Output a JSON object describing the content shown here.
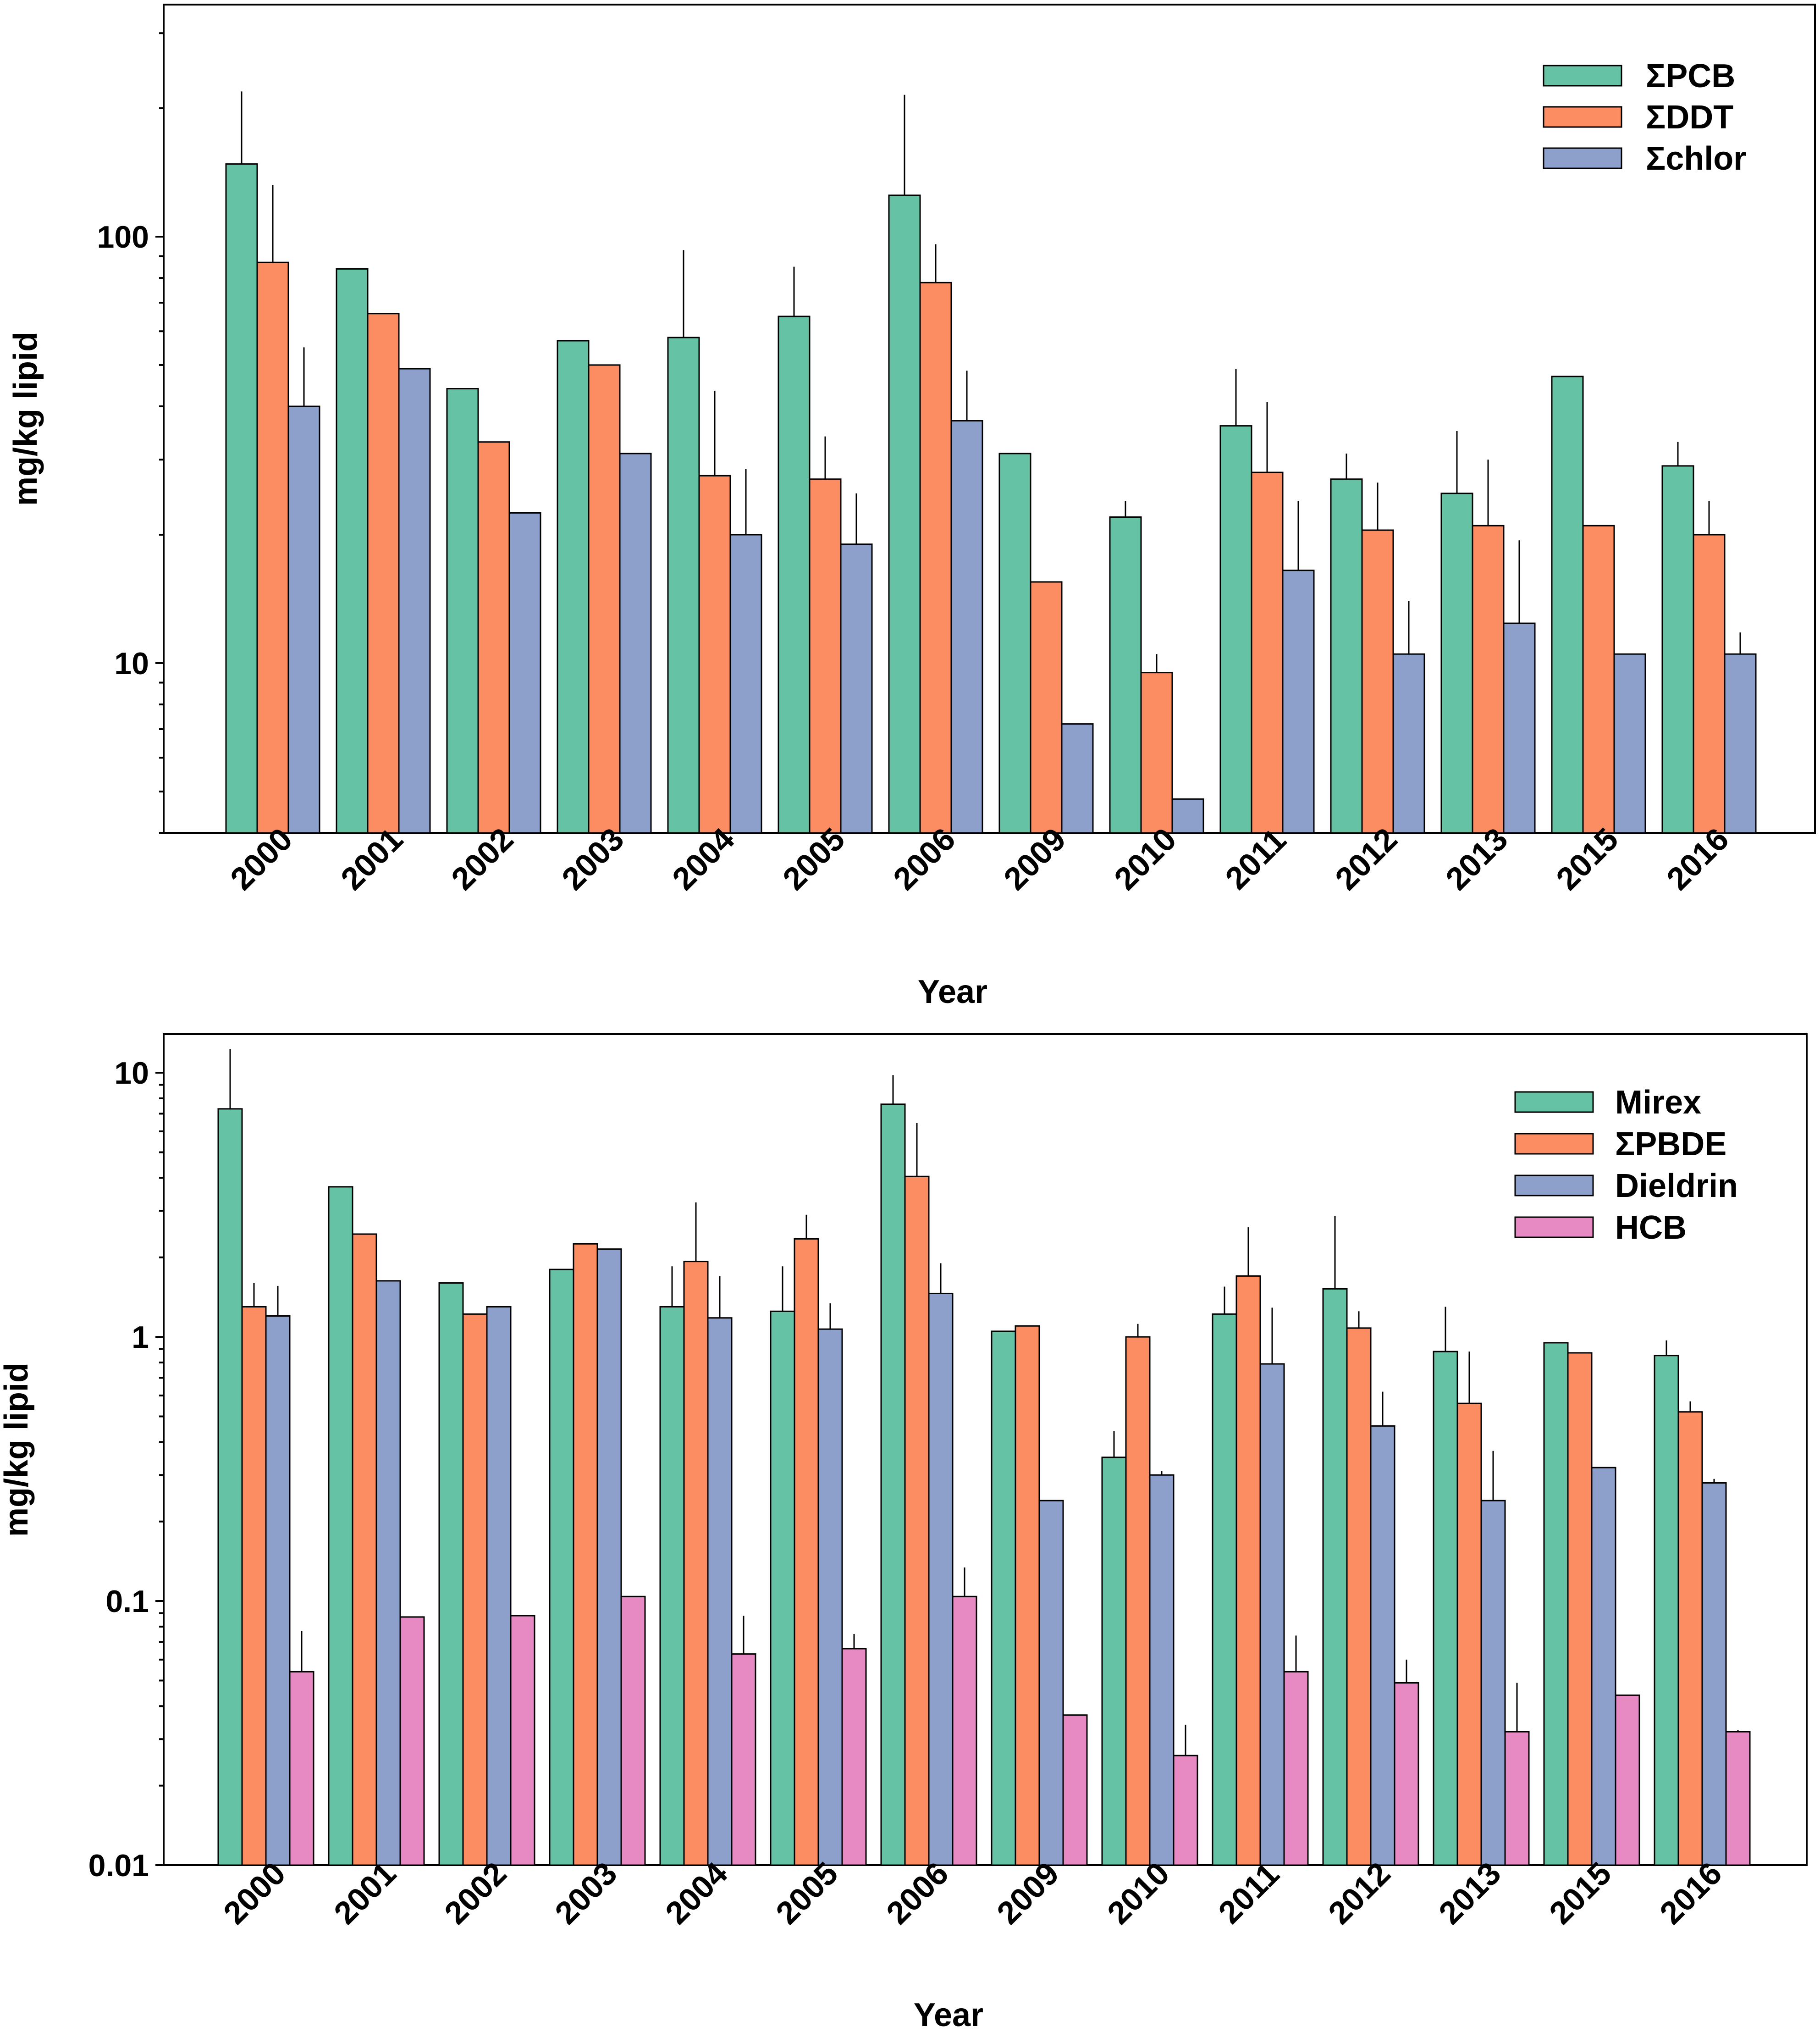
{
  "colors": {
    "series1": "#66c2a5",
    "series2": "#fc8d62",
    "series3": "#8da0cb",
    "series4": "#e78ac3",
    "axis": "#000000"
  },
  "chart_data": [
    {
      "type": "bar",
      "scale": "log",
      "title": "",
      "xlabel": "Year",
      "ylabel": "mg/kg lipid",
      "ylim": [
        4,
        350
      ],
      "yticks": [
        {
          "value": 10,
          "label": "10"
        },
        {
          "value": 100,
          "label": "100"
        }
      ],
      "categories": [
        "2000",
        "2001",
        "2002",
        "2003",
        "2004",
        "2005",
        "2006",
        "2009",
        "2010",
        "2011",
        "2012",
        "2013",
        "2015",
        "2016"
      ],
      "legend": {
        "position": "top-right"
      },
      "series": [
        {
          "name": "ΣPCB",
          "color_key": "series1",
          "values": [
            148,
            84,
            44,
            57,
            58,
            65,
            125,
            31,
            22,
            36,
            27,
            25,
            47,
            29
          ],
          "errors": [
            71,
            null,
            null,
            null,
            35,
            20,
            90,
            null,
            2,
            13,
            4,
            10,
            null,
            4
          ]
        },
        {
          "name": "ΣDDT",
          "color_key": "series2",
          "values": [
            87,
            66,
            33,
            50,
            27.5,
            27,
            78,
            15.5,
            9.5,
            28,
            20.5,
            21,
            21,
            20
          ],
          "errors": [
            45,
            null,
            null,
            null,
            16,
            7,
            18,
            null,
            1,
            13,
            6,
            9,
            null,
            4
          ]
        },
        {
          "name": "Σchlor",
          "color_key": "series3",
          "values": [
            40,
            49,
            22.5,
            31,
            20,
            19,
            37,
            7.2,
            4.8,
            16.5,
            10.5,
            12.4,
            10.5,
            10.5
          ],
          "errors": [
            15,
            null,
            null,
            null,
            8.5,
            6,
            11.5,
            null,
            null,
            7.5,
            3.5,
            7,
            null,
            1.3
          ]
        }
      ]
    },
    {
      "type": "bar",
      "scale": "log",
      "title": "",
      "xlabel": "Year",
      "ylabel": "mg/kg lipid",
      "ylim": [
        0.01,
        14
      ],
      "yticks": [
        {
          "value": 0.01,
          "label": "0.01"
        },
        {
          "value": 0.1,
          "label": "0.1"
        },
        {
          "value": 1,
          "label": "1"
        },
        {
          "value": 10,
          "label": "10"
        }
      ],
      "categories": [
        "2000",
        "2001",
        "2002",
        "2003",
        "2004",
        "2005",
        "2006",
        "2009",
        "2010",
        "2011",
        "2012",
        "2013",
        "2015",
        "2016"
      ],
      "legend": {
        "position": "top-right"
      },
      "series": [
        {
          "name": "Mirex",
          "color_key": "series1",
          "values": [
            7.3,
            3.7,
            1.6,
            1.8,
            1.3,
            1.25,
            7.6,
            1.05,
            0.35,
            1.22,
            1.52,
            0.88,
            0.95,
            0.85
          ],
          "errors": [
            5,
            null,
            null,
            null,
            0.55,
            0.6,
            2.2,
            null,
            0.09,
            0.33,
            1.35,
            0.42,
            null,
            0.12
          ]
        },
        {
          "name": "ΣPBDE",
          "color_key": "series2",
          "values": [
            1.3,
            2.45,
            1.22,
            2.25,
            1.93,
            2.35,
            4.05,
            1.1,
            1.0,
            1.7,
            1.08,
            0.56,
            0.87,
            0.52
          ],
          "errors": [
            0.3,
            null,
            null,
            null,
            1.3,
            0.55,
            2.4,
            null,
            0.12,
            0.9,
            0.17,
            0.32,
            null,
            0.05
          ]
        },
        {
          "name": "Dieldrin",
          "color_key": "series3",
          "values": [
            1.2,
            1.63,
            1.3,
            2.15,
            1.18,
            1.07,
            1.46,
            0.24,
            0.3,
            0.79,
            0.46,
            0.24,
            0.32,
            0.28
          ],
          "errors": [
            0.36,
            null,
            null,
            null,
            0.52,
            0.27,
            0.44,
            null,
            0.01,
            0.5,
            0.16,
            0.13,
            null,
            0.01
          ]
        },
        {
          "name": "HCB",
          "color_key": "series4",
          "values": [
            0.054,
            0.087,
            0.088,
            0.104,
            0.063,
            0.066,
            0.104,
            0.037,
            0.026,
            0.054,
            0.049,
            0.032,
            0.044,
            0.032
          ],
          "errors": [
            0.023,
            null,
            null,
            null,
            0.025,
            0.009,
            0.03,
            null,
            0.008,
            0.02,
            0.011,
            0.017,
            null,
            0.0005
          ]
        }
      ]
    }
  ]
}
